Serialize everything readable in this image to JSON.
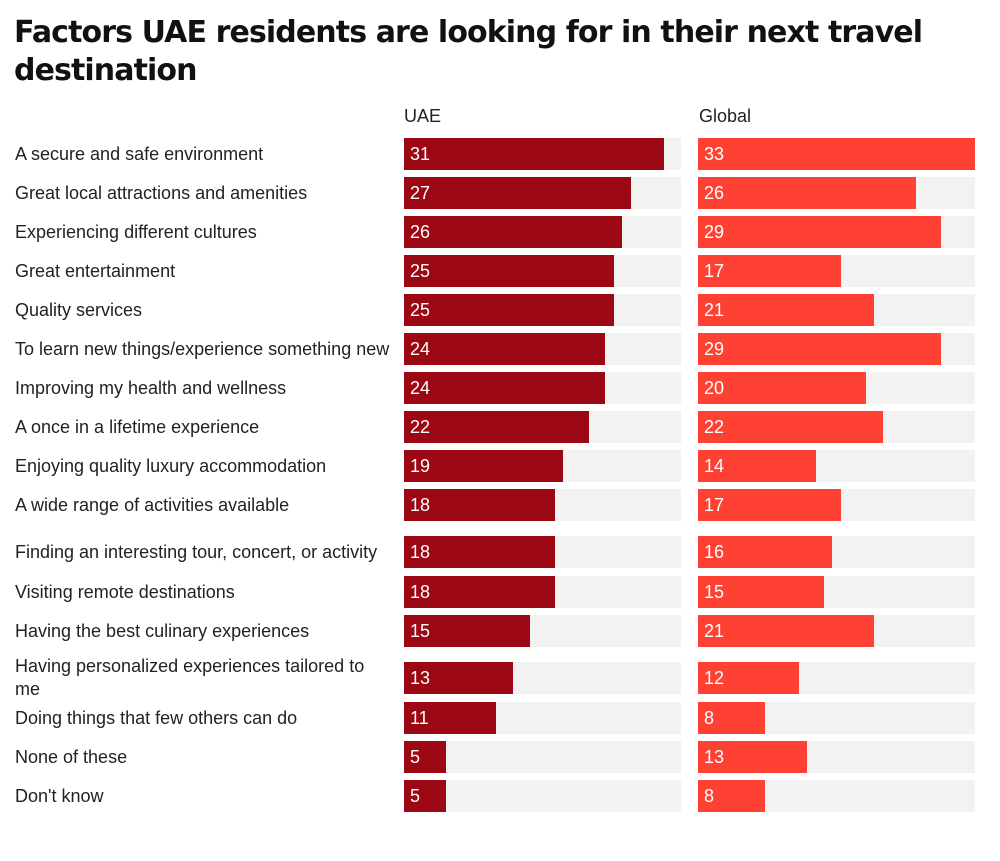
{
  "chart_data": {
    "type": "bar",
    "orientation": "horizontal",
    "title": "Factors UAE residents are looking for in their next travel destination",
    "xlim": [
      0,
      33
    ],
    "grid": false,
    "categories": [
      "A secure and safe environment",
      "Great local attractions and amenities",
      "Experiencing different cultures",
      "Great entertainment",
      "Quality services",
      "To learn new things/experience something new",
      "Improving my health and wellness",
      "A once in a lifetime experience",
      "Enjoying quality luxury accommodation",
      "A wide range of activities available",
      "Finding an interesting tour, concert, or activity",
      "Visiting remote destinations",
      "Having the best culinary experiences",
      "Having personalized experiences tailored to me",
      "Doing things that few others can do",
      "None of these",
      "Don't know"
    ],
    "series": [
      {
        "name": "UAE",
        "color": "#9b0712",
        "values": [
          31,
          27,
          26,
          25,
          25,
          24,
          24,
          22,
          19,
          18,
          18,
          18,
          15,
          13,
          11,
          5,
          5
        ]
      },
      {
        "name": "Global",
        "color": "#ff4133",
        "values": [
          33,
          26,
          29,
          17,
          21,
          29,
          20,
          22,
          14,
          17,
          16,
          15,
          21,
          12,
          8,
          13,
          8
        ]
      }
    ],
    "track_color": "#f2f2f2"
  }
}
